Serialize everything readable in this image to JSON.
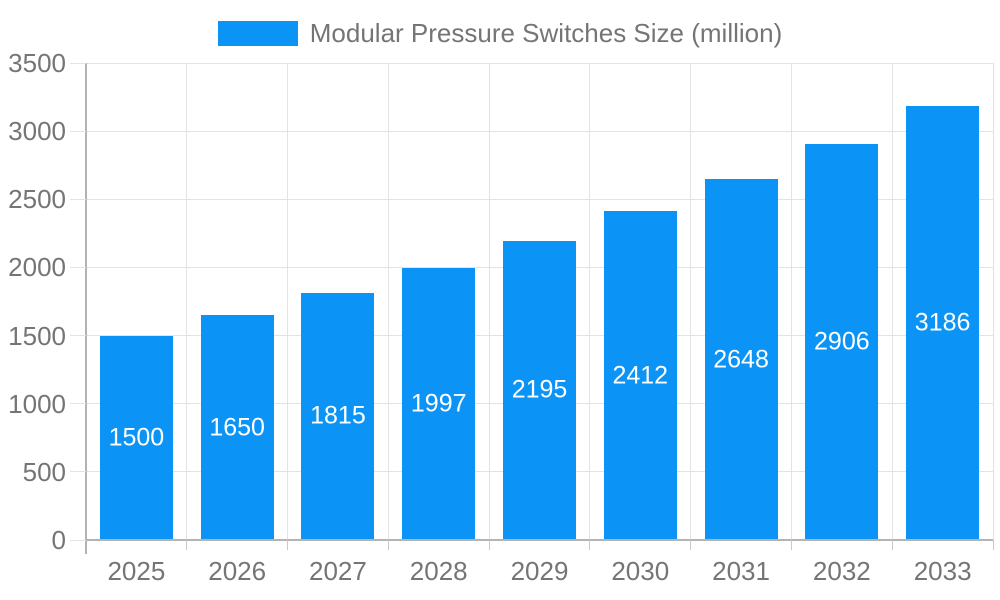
{
  "legend": {
    "label": "Modular Pressure Switches Size (million)"
  },
  "chart_data": {
    "type": "bar",
    "title": "Modular Pressure Switches Size (million)",
    "series_name": "Modular Pressure Switches Size (million)",
    "categories": [
      "2025",
      "2026",
      "2027",
      "2028",
      "2029",
      "2030",
      "2031",
      "2032",
      "2033"
    ],
    "values": [
      1500,
      1650,
      1815,
      1997,
      2195,
      2412,
      2648,
      2906,
      3186
    ],
    "bar_labels": [
      "1500",
      "1650",
      "1815",
      "1997",
      "2195",
      "2412",
      "2648",
      "2906",
      "3186"
    ],
    "xlabel": "",
    "ylabel": "",
    "ylim": [
      0,
      3500
    ],
    "yticks": [
      0,
      500,
      1000,
      1500,
      2000,
      2500,
      3000,
      3500
    ],
    "grid": true,
    "legend_position": "top",
    "colors": {
      "bar": "#0b93f6",
      "bar_label": "#ffffff",
      "axis_text": "#757575",
      "gridline": "#e3e3e3",
      "axis_line": "#b3b3b3",
      "tick": "#c9c9c9",
      "background": "#ffffff"
    }
  }
}
